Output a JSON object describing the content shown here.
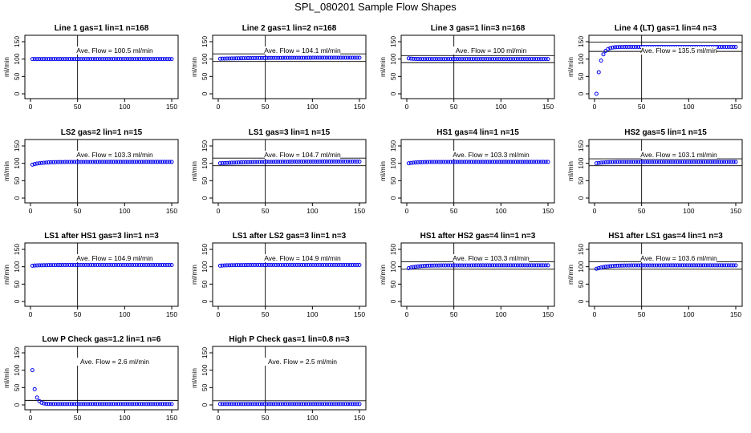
{
  "page": {
    "title": "SPL_080201  Sample Flow Shapes"
  },
  "colors": {
    "points": "#0000ee",
    "axis": "#000000",
    "ref_lines": "#000000"
  },
  "chart_data": [
    {
      "type": "scatter",
      "title": "Line 1 gas=1 lin=1 n=168",
      "ylabel": "ml/min",
      "annotation": "Ave. Flow =  100.5  ml/min",
      "flow": 100.5,
      "xticks": [
        "0",
        "50",
        "100",
        "150"
      ],
      "yticks": [
        "0",
        "50",
        "100",
        "150"
      ],
      "xlim": [
        0,
        150
      ],
      "ylim": [
        0,
        150
      ],
      "vline": 50,
      "hlines": [],
      "curve": {
        "start": 100,
        "level": 100,
        "tau": 1
      }
    },
    {
      "type": "scatter",
      "title": "Line 2 gas=1 lin=2 n=168",
      "ylabel": "ml/min",
      "annotation": "Ave. Flow =  104.1  ml/min",
      "flow": 104.1,
      "xticks": [
        "0",
        "50",
        "100",
        "150"
      ],
      "yticks": [
        "0",
        "50",
        "100",
        "150"
      ],
      "xlim": [
        0,
        150
      ],
      "ylim": [
        0,
        150
      ],
      "vline": 50,
      "hlines": [
        115,
        93
      ],
      "curve": {
        "start": 101,
        "level": 104,
        "tau": 40
      }
    },
    {
      "type": "scatter",
      "title": "Line 3 gas=1 lin=3 n=168",
      "ylabel": "ml/min",
      "annotation": "Ave. Flow =  100  ml/min",
      "flow": 100,
      "xticks": [
        "0",
        "50",
        "100",
        "150"
      ],
      "yticks": [
        "0",
        "50",
        "100",
        "150"
      ],
      "xlim": [
        0,
        150
      ],
      "ylim": [
        0,
        150
      ],
      "vline": 50,
      "hlines": [
        110,
        90
      ],
      "curve": {
        "start": 102,
        "level": 100,
        "tau": 5
      }
    },
    {
      "type": "scatter",
      "title": "Line 4 (LT) gas=1 lin=4 n=3",
      "ylabel": "ml/min",
      "annotation": "Ave. Flow =  135.5  ml/min",
      "flow": 135.5,
      "xticks": [
        "0",
        "50",
        "100",
        "150"
      ],
      "yticks": [
        "0",
        "50",
        "100",
        "150"
      ],
      "xlim": [
        0,
        150
      ],
      "ylim": [
        0,
        150
      ],
      "vline": 50,
      "hlines": [
        149,
        122
      ],
      "curve": {
        "start": 0,
        "level": 135,
        "tau": 4
      }
    },
    {
      "type": "scatter",
      "title": "LS2 gas=2 lin=1 n=15",
      "ylabel": "ml/min",
      "annotation": "Ave. Flow =  103.3  ml/min",
      "flow": 103.3,
      "xticks": [
        "0",
        "50",
        "100",
        "150"
      ],
      "yticks": [
        "0",
        "50",
        "100",
        "150"
      ],
      "xlim": [
        0,
        150
      ],
      "ylim": [
        0,
        150
      ],
      "vline": 50,
      "hlines": [],
      "curve": {
        "start": 96,
        "level": 104,
        "tau": 10
      }
    },
    {
      "type": "scatter",
      "title": "LS1 gas=3 lin=1 n=15",
      "ylabel": "ml/min",
      "annotation": "Ave. Flow =  104.7  ml/min",
      "flow": 104.7,
      "xticks": [
        "0",
        "50",
        "100",
        "150"
      ],
      "yticks": [
        "0",
        "50",
        "100",
        "150"
      ],
      "xlim": [
        0,
        150
      ],
      "ylim": [
        0,
        150
      ],
      "vline": 50,
      "hlines": [
        115,
        93
      ],
      "curve": {
        "start": 100,
        "level": 105,
        "tau": 30
      }
    },
    {
      "type": "scatter",
      "title": "HS1 gas=4 lin=1 n=15",
      "ylabel": "ml/min",
      "annotation": "Ave. Flow =  103.3  ml/min",
      "flow": 103.3,
      "xticks": [
        "0",
        "50",
        "100",
        "150"
      ],
      "yticks": [
        "0",
        "50",
        "100",
        "150"
      ],
      "xlim": [
        0,
        150
      ],
      "ylim": [
        0,
        150
      ],
      "vline": 50,
      "hlines": [],
      "curve": {
        "start": 100,
        "level": 104,
        "tau": 8
      }
    },
    {
      "type": "scatter",
      "title": "HS2 gas=5 lin=1 n=15",
      "ylabel": "ml/min",
      "annotation": "Ave. Flow =  103.1  ml/min",
      "flow": 103.1,
      "xticks": [
        "0",
        "50",
        "100",
        "150"
      ],
      "yticks": [
        "0",
        "50",
        "100",
        "150"
      ],
      "xlim": [
        0,
        150
      ],
      "ylim": [
        0,
        150
      ],
      "vline": 50,
      "hlines": [
        113,
        93
      ],
      "curve": {
        "start": 100,
        "level": 104,
        "tau": 8
      }
    },
    {
      "type": "scatter",
      "title": "LS1 after HS1 gas=3 lin=1 n=3",
      "ylabel": "ml/min",
      "annotation": "Ave. Flow =  104.9  ml/min",
      "flow": 104.9,
      "xticks": [
        "0",
        "50",
        "100",
        "150"
      ],
      "yticks": [
        "0",
        "50",
        "100",
        "150"
      ],
      "xlim": [
        0,
        150
      ],
      "ylim": [
        0,
        150
      ],
      "vline": 50,
      "hlines": [],
      "curve": {
        "start": 103,
        "level": 105,
        "tau": 10
      }
    },
    {
      "type": "scatter",
      "title": "LS1 after LS2 gas=3 lin=1 n=3",
      "ylabel": "ml/min",
      "annotation": "Ave. Flow =  104.9  ml/min",
      "flow": 104.9,
      "xticks": [
        "0",
        "50",
        "100",
        "150"
      ],
      "yticks": [
        "0",
        "50",
        "100",
        "150"
      ],
      "xlim": [
        0,
        150
      ],
      "ylim": [
        0,
        150
      ],
      "vline": 50,
      "hlines": [],
      "curve": {
        "start": 103,
        "level": 105,
        "tau": 10
      }
    },
    {
      "type": "scatter",
      "title": "HS1 after HS2 gas=4 lin=1 n=3",
      "ylabel": "ml/min",
      "annotation": "Ave. Flow =  103.3  ml/min",
      "flow": 103.3,
      "xticks": [
        "0",
        "50",
        "100",
        "150"
      ],
      "yticks": [
        "0",
        "50",
        "100",
        "150"
      ],
      "xlim": [
        0,
        150
      ],
      "ylim": [
        0,
        150
      ],
      "vline": 50,
      "hlines": [
        114,
        93
      ],
      "curve": {
        "start": 96,
        "level": 104,
        "tau": 10
      }
    },
    {
      "type": "scatter",
      "title": "HS1 after LS1 gas=4 lin=1 n=3",
      "ylabel": "ml/min",
      "annotation": "Ave. Flow =  103.6  ml/min",
      "flow": 103.6,
      "xticks": [
        "0",
        "50",
        "100",
        "150"
      ],
      "yticks": [
        "0",
        "50",
        "100",
        "150"
      ],
      "xlim": [
        0,
        150
      ],
      "ylim": [
        0,
        150
      ],
      "vline": 50,
      "hlines": [
        114,
        93
      ],
      "curve": {
        "start": 94,
        "level": 104,
        "tau": 10
      }
    },
    {
      "type": "scatter",
      "title": "Low P Check gas=1.2 lin=1 n=6",
      "ylabel": "ml/min",
      "annotation": "Ave. Flow =  2.6  ml/min",
      "flow": 2.6,
      "xticks": [
        "0",
        "50",
        "100",
        "150"
      ],
      "yticks": [
        "0",
        "50",
        "100",
        "150"
      ],
      "xlim": [
        0,
        150
      ],
      "ylim": [
        0,
        150
      ],
      "vline": 50,
      "hlines": [
        13
      ],
      "curve": {
        "start": 100,
        "level": 2.6,
        "tau": 3
      }
    },
    {
      "type": "scatter",
      "title": "High P Check gas=1 lin=0.8 n=3",
      "ylabel": "ml/min",
      "annotation": "Ave. Flow =  2.5  ml/min",
      "flow": 2.5,
      "xticks": [
        "0",
        "50",
        "100",
        "150"
      ],
      "yticks": [
        "0",
        "50",
        "100",
        "150"
      ],
      "xlim": [
        0,
        150
      ],
      "ylim": [
        0,
        150
      ],
      "vline": 50,
      "hlines": [
        12
      ],
      "curve": {
        "start": 2.5,
        "level": 2.5,
        "tau": 1
      }
    }
  ]
}
